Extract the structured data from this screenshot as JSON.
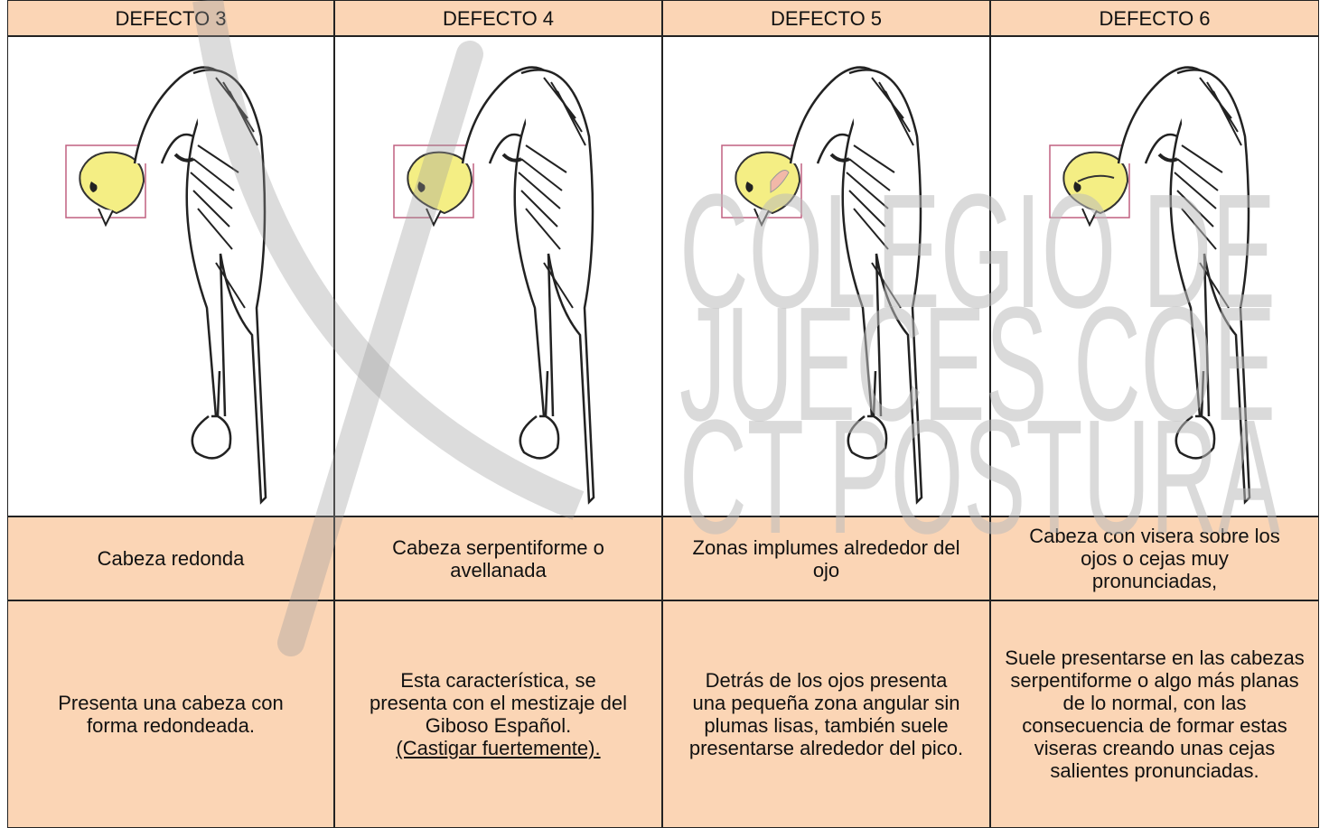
{
  "table": {
    "header": [
      "DEFECTO 3",
      "DEFECTO 4",
      "DEFECTO 5",
      "DEFECTO 6"
    ],
    "rows": [
      [
        "Cabeza redonda",
        "Cabeza serpentiforme o avellanada",
        "Zonas implumes alrededor del ojo",
        "Cabeza con visera sobre los ojos o cejas muy pronunciadas,"
      ],
      [
        {
          "text": "Presenta una cabeza con forma redondeada."
        },
        {
          "text": "Esta característica, se presenta con el mestizaje del Giboso Español.",
          "note": "(Castigar fuertemente)."
        },
        {
          "text": "Detrás de los ojos presenta una pequeña zona angular sin plumas lisas, también suele presentarse alrededor del pico."
        },
        {
          "text": "Suele presentarse en las cabezas serpentiforme o algo más planas de lo normal, con las consecuencia de formar estas viseras creando unas cejas salientes pronunciadas."
        }
      ]
    ]
  },
  "watermark": [
    "COLEGIO DE",
    "JUECES COE",
    "CT POSTURA"
  ]
}
